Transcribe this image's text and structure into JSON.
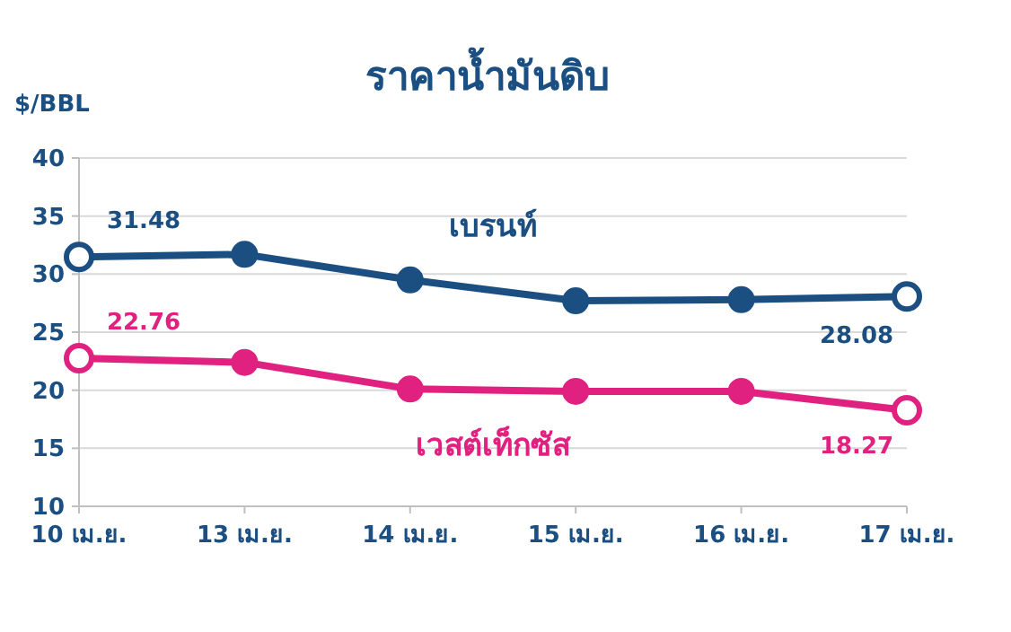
{
  "chart_data": {
    "type": "line",
    "title": "ราคาน้ำมันดิบ",
    "ylabel": "$/BBL",
    "categories": [
      "10 เม.ย.",
      "13 เม.ย.",
      "14 เม.ย.",
      "15 เม.ย.",
      "16 เม.ย.",
      "17 เม.ย."
    ],
    "series": [
      {
        "name": "เบรนท์",
        "color": "#1b4f82",
        "values": [
          31.48,
          31.7,
          29.5,
          27.7,
          27.8,
          28.08
        ],
        "value_labels": [
          "31.48",
          null,
          null,
          null,
          null,
          "28.08"
        ]
      },
      {
        "name": "เวสต์เท็กซัส",
        "color": "#e0217f",
        "values": [
          22.76,
          22.4,
          20.1,
          19.9,
          19.9,
          18.27
        ],
        "value_labels": [
          "22.76",
          null,
          null,
          null,
          null,
          "18.27"
        ]
      }
    ],
    "ylim": [
      10,
      40
    ],
    "yticks": [
      10,
      15,
      20,
      25,
      30,
      35,
      40
    ],
    "grid": "y",
    "marker": "circle",
    "line_style": "solid"
  }
}
